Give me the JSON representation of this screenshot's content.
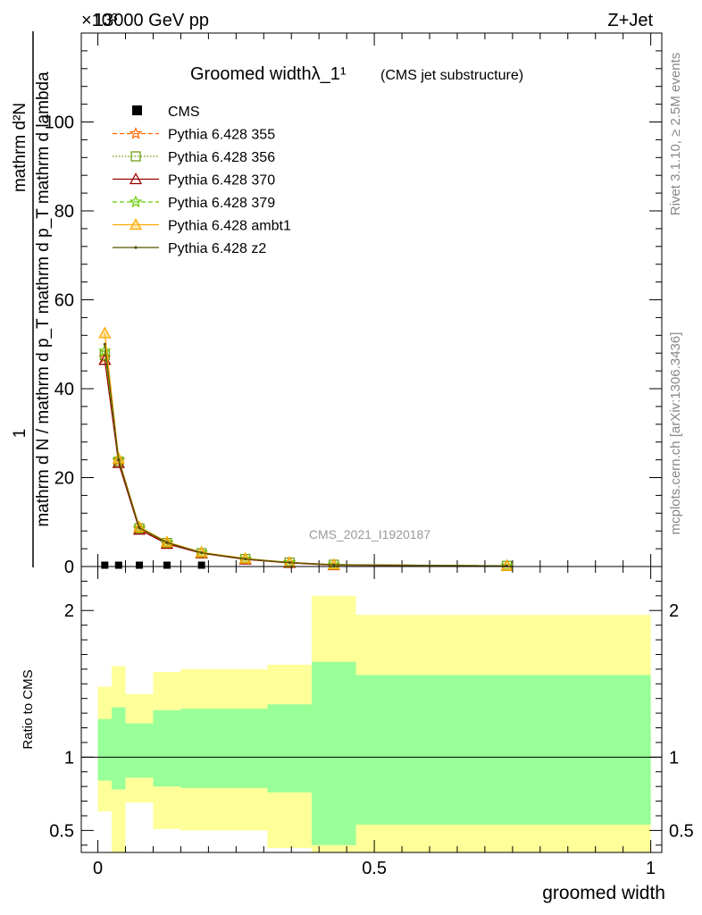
{
  "header": {
    "left": "13000 GeV pp",
    "right": "Z+Jet",
    "exponent": "×10³"
  },
  "side_labels": {
    "rivet": "Rivet 3.1.10, ≥ 2.5M events",
    "mcplots": "mcplots.cern.ch [arXiv:1306.3436]"
  },
  "watermark": "CMS_2021_I1920187",
  "chart_data": [
    {
      "type": "line",
      "title": "Groomed widthλ_1¹",
      "title_suffix": "(CMS jet substructure)",
      "ylabel_top": "1",
      "ylabel_numerator": "mathrm d²N",
      "ylabel_denominator": "mathrm d N / mathrm d p_T mathrm d p_T mathrm d lambda",
      "xlim": [
        -0.03,
        1.02
      ],
      "ylim": [
        0,
        120
      ],
      "yticks": [
        0,
        20,
        40,
        60,
        80,
        100
      ],
      "legend_position": "top-left",
      "x": [
        0.0125,
        0.0375,
        0.075,
        0.125,
        0.1875,
        0.2667,
        0.3467,
        0.4267,
        0.74
      ],
      "series": [
        {
          "name": "CMS",
          "style": "data",
          "color": "#000000",
          "values": [
            0.3,
            0.3,
            0.3,
            0.3,
            0.3,
            0.0,
            0.0,
            0.0,
            0.0
          ]
        },
        {
          "name": "Pythia 6.428 355",
          "style": "dashed",
          "marker": "star",
          "color": "#ff6600",
          "values": [
            47.0,
            23.8,
            8.5,
            5.2,
            3.1,
            1.6,
            0.9,
            0.4,
            0.15
          ]
        },
        {
          "name": "Pythia 6.428 356",
          "style": "dotted",
          "marker": "square",
          "color": "#669900",
          "values": [
            47.5,
            23.6,
            8.6,
            5.3,
            3.0,
            1.7,
            0.9,
            0.4,
            0.15
          ]
        },
        {
          "name": "Pythia 6.428 370",
          "style": "solid",
          "marker": "triangle",
          "color": "#990000",
          "values": [
            46.5,
            23.3,
            8.3,
            5.1,
            3.0,
            1.6,
            0.8,
            0.3,
            0.15
          ]
        },
        {
          "name": "Pythia 6.428 379",
          "style": "dashed",
          "marker": "star",
          "color": "#66cc00",
          "values": [
            48.5,
            24.0,
            8.7,
            5.4,
            3.1,
            1.7,
            0.9,
            0.4,
            0.15
          ]
        },
        {
          "name": "Pythia 6.428 ambt1",
          "style": "solid",
          "marker": "triangle",
          "color": "#ffaa00",
          "values": [
            52.5,
            24.3,
            8.9,
            5.5,
            3.2,
            1.8,
            0.9,
            0.4,
            0.15
          ]
        },
        {
          "name": "Pythia 6.428 z2",
          "style": "solid",
          "marker": "dot",
          "color": "#555500",
          "values": [
            50.0,
            24.0,
            8.7,
            5.4,
            3.1,
            1.7,
            0.9,
            0.4,
            0.15
          ]
        }
      ]
    },
    {
      "type": "area",
      "ylabel": "Ratio to CMS",
      "xlabel": "groomed width",
      "xlim": [
        -0.03,
        1.02
      ],
      "ylim": [
        0.35,
        2.3
      ],
      "yticks": [
        0.5,
        1,
        2
      ],
      "xticks": [
        0,
        0.5,
        1
      ],
      "bins": [
        0,
        0.025,
        0.05,
        0.1,
        0.15,
        0.3067,
        0.3867,
        0.4667,
        1.0
      ],
      "band_inner": {
        "color": "#99ff99",
        "lo": [
          0.84,
          0.78,
          0.86,
          0.8,
          0.79,
          0.76,
          0.4,
          0.54
        ],
        "hi": [
          1.26,
          1.34,
          1.23,
          1.32,
          1.33,
          1.36,
          1.65,
          1.56
        ]
      },
      "band_outer": {
        "color": "#ffff99",
        "lo": [
          0.63,
          0.35,
          0.69,
          0.51,
          0.5,
          0.38,
          0.35,
          0.35
        ],
        "hi": [
          1.48,
          1.62,
          1.43,
          1.58,
          1.6,
          1.63,
          2.1,
          1.97
        ]
      },
      "reference": 1
    }
  ]
}
